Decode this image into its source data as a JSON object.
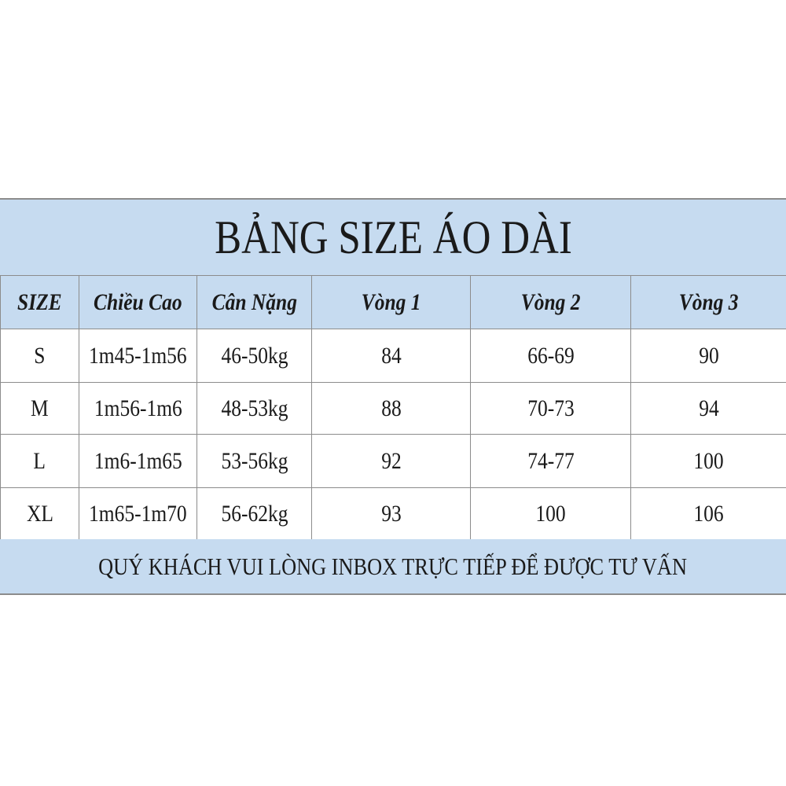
{
  "table": {
    "title": "BẢNG SIZE ÁO DÀI",
    "header": [
      "SIZE",
      "Chiều Cao",
      "Cân Nặng",
      "Vòng 1",
      "Vòng 2",
      "Vòng 3"
    ],
    "rows": [
      [
        "S",
        "1m45-1m56",
        "46-50kg",
        "84",
        "66-69",
        "90"
      ],
      [
        "M",
        "1m56-1m6",
        "48-53kg",
        "88",
        "70-73",
        "94"
      ],
      [
        "L",
        "1m6-1m65",
        "53-56kg",
        "92",
        "74-77",
        "100"
      ],
      [
        "XL",
        "1m65-1m70",
        "56-62kg",
        "93",
        "100",
        "106"
      ]
    ],
    "footer": "QUÝ KHÁCH VUI LÒNG INBOX TRỰC TIẾP ĐỂ ĐƯỢC TƯ VẤN"
  }
}
